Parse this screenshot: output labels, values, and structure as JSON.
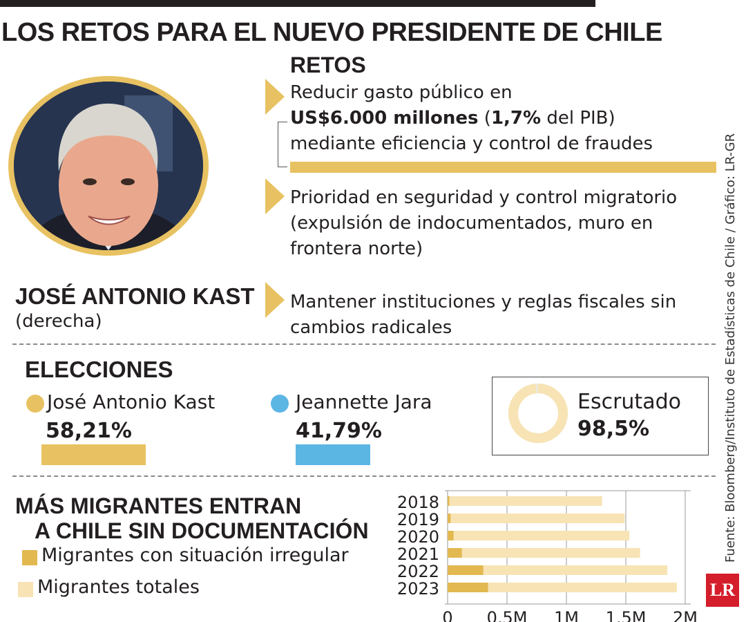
{
  "header": {
    "title": "LOS RETOS PARA EL NUEVO PRESIDENTE DE CHILE"
  },
  "person": {
    "name": "JOSÉ ANTONIO KAST",
    "party": "(derecha)"
  },
  "retos": {
    "title": "RETOS",
    "items": [
      {
        "line1": "Reducir gasto público en",
        "line2_bold1": "US$6.000 millones",
        "line2_mid1": " (",
        "line2_bold2": "1,7%",
        "line2_mid2": " del PIB)",
        "line3": "mediante eficiencia y control de fraudes"
      },
      {
        "line1": "Prioridad en seguridad y control migratorio",
        "line2": "(expulsión de indocumentados, muro en",
        "line3": "frontera norte)"
      },
      {
        "line1": "Mantener instituciones y reglas fiscales sin",
        "line2": "cambios radicales"
      }
    ]
  },
  "elecciones": {
    "title": "ELECCIONES",
    "candidates": [
      {
        "name": "José Antonio Kast",
        "pct": "58,21%",
        "value": 58.21,
        "color": "#e8c262"
      },
      {
        "name": "Jeannette Jara",
        "pct": "41,79%",
        "value": 41.79,
        "color": "#5cb6e4"
      }
    ],
    "escrutado": {
      "label": "Escrutado",
      "value_text": "98,5%",
      "value": 98.5
    }
  },
  "migracion": {
    "title_line1": "MÁS MIGRANTES ENTRAN",
    "title_line2": "A CHILE SIN DOCUMENTACIÓN",
    "legend": [
      {
        "label": "Migrantes con situación irregular",
        "color": "#e2b850"
      },
      {
        "label": "Migrantes totales",
        "color": "#f7e3b4"
      }
    ]
  },
  "chart_data": {
    "type": "bar",
    "orientation": "horizontal",
    "categories": [
      "2018",
      "2019",
      "2020",
      "2021",
      "2022",
      "2023"
    ],
    "series": [
      {
        "name": "Migrantes totales",
        "values": [
          1300000,
          1490000,
          1530000,
          1620000,
          1850000,
          1930000
        ],
        "color": "#f7e3b4"
      },
      {
        "name": "Migrantes con situación irregular",
        "values": [
          15000,
          25000,
          50000,
          120000,
          300000,
          340000
        ],
        "color": "#e2b850"
      }
    ],
    "xlim": [
      0,
      2000000
    ],
    "xticks": [
      0,
      500000,
      1000000,
      1500000,
      2000000
    ],
    "xtick_labels": [
      "0",
      "0,5M",
      "1M",
      "1,5M",
      "2M"
    ],
    "grid": true
  },
  "footer": {
    "source": "Fuente: Bloomberg/Instituto de Estadísticas de Chile / Gráfico: LR-GR",
    "logo": "LR"
  }
}
